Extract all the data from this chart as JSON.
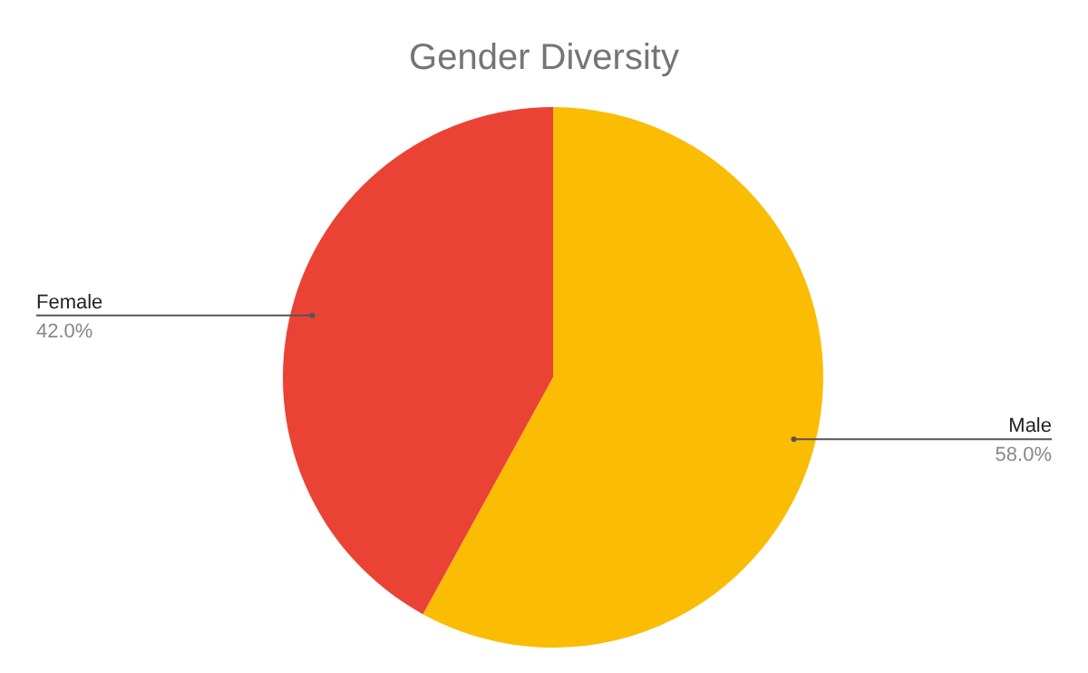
{
  "chart_data": {
    "type": "pie",
    "title": "Gender Diversity",
    "categories": [
      "Male",
      "Female"
    ],
    "values": [
      58,
      42
    ],
    "colors": [
      "#fbbc04",
      "#ea4335"
    ],
    "value_labels": [
      "58.0%",
      "42.0%"
    ]
  }
}
